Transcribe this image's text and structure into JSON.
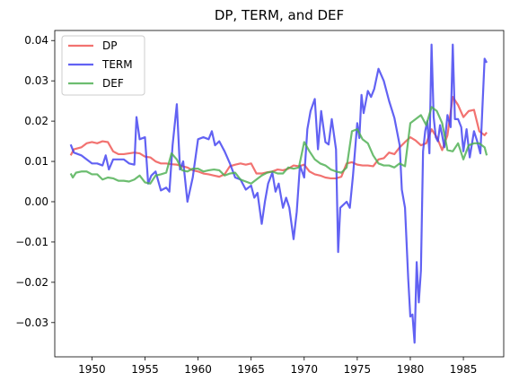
{
  "chart_data": {
    "type": "line",
    "title": "DP, TERM, and DEF",
    "xlabel": "",
    "ylabel": "",
    "xlim": [
      1946.5,
      1988.8
    ],
    "ylim": [
      -0.0385,
      0.0425
    ],
    "grid": false,
    "legend_position": "top-left",
    "x_ticks": [
      1950,
      1955,
      1960,
      1965,
      1970,
      1975,
      1980,
      1985
    ],
    "x_tick_labels": [
      "1950",
      "1955",
      "1960",
      "1965",
      "1970",
      "1975",
      "1980",
      "1985"
    ],
    "y_ticks": [
      -0.03,
      -0.02,
      -0.01,
      0.0,
      0.01,
      0.02,
      0.03,
      0.04
    ],
    "y_tick_labels": [
      "−0.03",
      "−0.02",
      "−0.01",
      "0.00",
      "0.01",
      "0.02",
      "0.03",
      "0.04"
    ],
    "series": [
      {
        "name": "DP",
        "color": "#ef5350",
        "x": [
          1948.0,
          1948.3,
          1949.0,
          1949.5,
          1950.0,
          1950.5,
          1951.0,
          1951.5,
          1952.0,
          1952.5,
          1953.0,
          1953.5,
          1954.0,
          1954.5,
          1955.0,
          1955.5,
          1956.0,
          1956.5,
          1957.0,
          1957.5,
          1958.0,
          1958.5,
          1959.0,
          1959.5,
          1960.0,
          1960.5,
          1961.0,
          1961.5,
          1962.0,
          1962.5,
          1963.0,
          1963.5,
          1964.0,
          1964.5,
          1965.0,
          1965.5,
          1966.0,
          1966.5,
          1967.0,
          1967.5,
          1968.0,
          1968.5,
          1969.0,
          1969.5,
          1970.0,
          1970.5,
          1971.0,
          1971.5,
          1972.0,
          1972.5,
          1973.0,
          1973.5,
          1974.0,
          1974.5,
          1975.0,
          1975.5,
          1976.0,
          1976.5,
          1977.0,
          1977.5,
          1978.0,
          1978.5,
          1979.0,
          1979.5,
          1980.0,
          1980.5,
          1981.0,
          1981.5,
          1982.0,
          1982.5,
          1983.0,
          1983.5,
          1984.0,
          1984.5,
          1985.0,
          1985.5,
          1986.0,
          1986.5,
          1987.0,
          1987.2
        ],
        "values": [
          0.0115,
          0.013,
          0.0135,
          0.0145,
          0.0148,
          0.0145,
          0.015,
          0.0148,
          0.0125,
          0.0118,
          0.0118,
          0.012,
          0.0122,
          0.012,
          0.0112,
          0.011,
          0.01,
          0.0095,
          0.0095,
          0.0093,
          0.0092,
          0.0088,
          0.0085,
          0.0078,
          0.0075,
          0.007,
          0.0068,
          0.0065,
          0.0062,
          0.0068,
          0.0088,
          0.0092,
          0.0095,
          0.0092,
          0.0095,
          0.007,
          0.007,
          0.0073,
          0.0075,
          0.008,
          0.0078,
          0.0082,
          0.009,
          0.0088,
          0.0092,
          0.0075,
          0.0068,
          0.0065,
          0.006,
          0.0058,
          0.0058,
          0.0062,
          0.0095,
          0.0098,
          0.0092,
          0.009,
          0.009,
          0.0088,
          0.0105,
          0.0108,
          0.0122,
          0.0118,
          0.0135,
          0.0148,
          0.016,
          0.0152,
          0.014,
          0.0145,
          0.018,
          0.016,
          0.0128,
          0.0165,
          0.026,
          0.024,
          0.021,
          0.0225,
          0.0228,
          0.0175,
          0.0165,
          0.0172
        ]
      },
      {
        "name": "TERM",
        "color": "#3f3ff0",
        "x": [
          1948.0,
          1948.3,
          1949.0,
          1949.5,
          1950.0,
          1950.5,
          1951.0,
          1951.3,
          1951.6,
          1952.0,
          1952.5,
          1953.0,
          1953.5,
          1954.0,
          1954.2,
          1954.5,
          1955.0,
          1955.3,
          1955.6,
          1956.0,
          1956.5,
          1957.0,
          1957.3,
          1957.6,
          1958.0,
          1958.3,
          1958.6,
          1959.0,
          1959.5,
          1960.0,
          1960.5,
          1961.0,
          1961.3,
          1961.6,
          1962.0,
          1962.5,
          1963.0,
          1963.5,
          1964.0,
          1964.5,
          1965.0,
          1965.3,
          1965.6,
          1966.0,
          1966.3,
          1966.6,
          1967.0,
          1967.3,
          1967.6,
          1968.0,
          1968.3,
          1968.6,
          1969.0,
          1969.3,
          1969.6,
          1970.0,
          1970.3,
          1970.6,
          1971.0,
          1971.3,
          1971.6,
          1972.0,
          1972.3,
          1972.6,
          1973.0,
          1973.2,
          1973.4,
          1973.6,
          1974.0,
          1974.3,
          1974.6,
          1975.0,
          1975.2,
          1975.4,
          1975.6,
          1976.0,
          1976.3,
          1976.6,
          1977.0,
          1977.5,
          1978.0,
          1978.5,
          1979.0,
          1979.2,
          1979.5,
          1979.8,
          1980.0,
          1980.2,
          1980.4,
          1980.6,
          1980.8,
          1981.0,
          1981.2,
          1981.4,
          1981.6,
          1981.8,
          1982.0,
          1982.2,
          1982.4,
          1982.6,
          1982.8,
          1983.0,
          1983.2,
          1983.5,
          1983.8,
          1984.0,
          1984.2,
          1984.5,
          1984.8,
          1985.0,
          1985.3,
          1985.6,
          1986.0,
          1986.3,
          1986.6,
          1987.0,
          1987.2
        ],
        "values": [
          0.0142,
          0.0122,
          0.0115,
          0.0105,
          0.0095,
          0.0095,
          0.009,
          0.0115,
          0.008,
          0.0105,
          0.0105,
          0.0105,
          0.0095,
          0.0092,
          0.021,
          0.0155,
          0.016,
          0.0045,
          0.0065,
          0.0075,
          0.0028,
          0.0035,
          0.0025,
          0.014,
          0.0242,
          0.008,
          0.01,
          0.0,
          0.006,
          0.0155,
          0.016,
          0.0155,
          0.0175,
          0.014,
          0.015,
          0.0125,
          0.0095,
          0.006,
          0.0055,
          0.003,
          0.004,
          0.001,
          0.0022,
          -0.0055,
          0.0,
          0.0045,
          0.0072,
          0.0025,
          0.0045,
          -0.0015,
          0.001,
          -0.0015,
          -0.0093,
          -0.0025,
          0.009,
          0.006,
          0.018,
          0.0225,
          0.0255,
          0.013,
          0.0225,
          0.0148,
          0.0142,
          0.0205,
          0.013,
          -0.0125,
          -0.0015,
          -0.001,
          0.0,
          -0.0015,
          0.0065,
          0.0195,
          0.0158,
          0.0265,
          0.022,
          0.0275,
          0.026,
          0.028,
          0.033,
          0.03,
          0.025,
          0.0208,
          0.014,
          0.003,
          -0.0015,
          -0.019,
          -0.0285,
          -0.028,
          -0.035,
          -0.015,
          -0.025,
          -0.017,
          0.0125,
          0.0175,
          0.02,
          0.012,
          0.039,
          0.021,
          0.016,
          0.015,
          0.019,
          0.0165,
          0.0135,
          0.0215,
          0.0185,
          0.039,
          0.0205,
          0.0205,
          0.0185,
          0.0125,
          0.018,
          0.011,
          0.0175,
          0.015,
          0.012,
          0.0355,
          0.0345
        ]
      },
      {
        "name": "DEF",
        "color": "#4caf50",
        "x": [
          1948.0,
          1948.2,
          1948.5,
          1949.0,
          1949.5,
          1950.0,
          1950.5,
          1951.0,
          1951.5,
          1952.0,
          1952.5,
          1953.0,
          1953.5,
          1954.0,
          1954.5,
          1955.0,
          1955.5,
          1956.0,
          1956.5,
          1957.0,
          1957.5,
          1958.0,
          1958.5,
          1959.0,
          1959.5,
          1960.0,
          1960.5,
          1961.0,
          1961.5,
          1962.0,
          1962.5,
          1963.0,
          1963.5,
          1964.0,
          1964.5,
          1965.0,
          1965.5,
          1966.0,
          1966.5,
          1967.0,
          1967.5,
          1968.0,
          1968.5,
          1969.0,
          1969.5,
          1970.0,
          1970.5,
          1971.0,
          1971.5,
          1972.0,
          1972.5,
          1973.0,
          1973.5,
          1974.0,
          1974.5,
          1975.0,
          1975.5,
          1976.0,
          1976.5,
          1977.0,
          1977.5,
          1978.0,
          1978.5,
          1979.0,
          1979.5,
          1980.0,
          1980.5,
          1981.0,
          1981.5,
          1982.0,
          1982.5,
          1983.0,
          1983.5,
          1984.0,
          1984.5,
          1985.0,
          1985.5,
          1986.0,
          1986.5,
          1987.0,
          1987.2
        ],
        "values": [
          0.007,
          0.006,
          0.0072,
          0.0075,
          0.0075,
          0.0068,
          0.0068,
          0.0055,
          0.006,
          0.0058,
          0.0052,
          0.0052,
          0.005,
          0.0055,
          0.0065,
          0.0048,
          0.0045,
          0.0065,
          0.0068,
          0.0072,
          0.012,
          0.0105,
          0.0078,
          0.0075,
          0.0082,
          0.0082,
          0.0075,
          0.0078,
          0.008,
          0.0078,
          0.0065,
          0.007,
          0.0072,
          0.0055,
          0.005,
          0.0045,
          0.0055,
          0.0065,
          0.0072,
          0.0075,
          0.007,
          0.007,
          0.0085,
          0.0082,
          0.0085,
          0.0148,
          0.0125,
          0.0105,
          0.0095,
          0.009,
          0.008,
          0.0075,
          0.0072,
          0.0085,
          0.0175,
          0.018,
          0.0155,
          0.0145,
          0.0115,
          0.0095,
          0.009,
          0.009,
          0.0085,
          0.0095,
          0.0088,
          0.0195,
          0.0205,
          0.0215,
          0.019,
          0.0235,
          0.0225,
          0.0195,
          0.0128,
          0.0125,
          0.0145,
          0.0105,
          0.014,
          0.0145,
          0.0145,
          0.0135,
          0.0115
        ]
      }
    ]
  }
}
